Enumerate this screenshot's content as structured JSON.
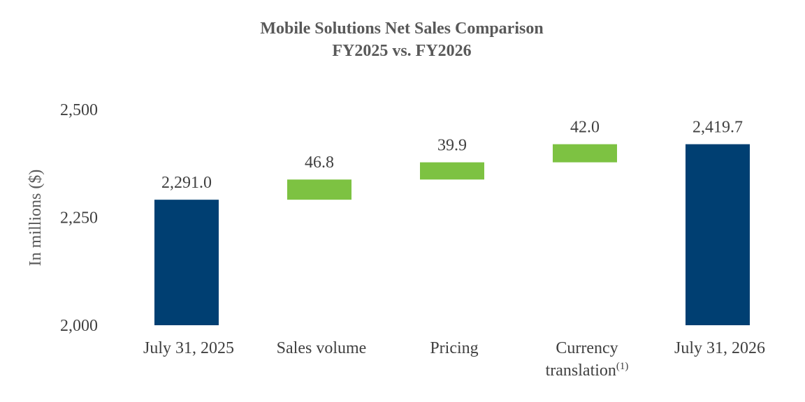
{
  "chart_data": {
    "type": "bar",
    "subtype": "waterfall",
    "title": "Mobile Solutions Net Sales Comparison",
    "subtitle": "FY2025 vs. FY2026",
    "ylabel": "In millions ($)",
    "ylim": [
      2000,
      2500
    ],
    "yticks": [
      "2,000",
      "2,250",
      "2,500"
    ],
    "ytick_values": [
      2000,
      2250,
      2500
    ],
    "categories": [
      {
        "label": "July 31, 2025",
        "label2": "",
        "sup": ""
      },
      {
        "label": "Sales volume",
        "label2": "",
        "sup": ""
      },
      {
        "label": "Pricing",
        "label2": "",
        "sup": ""
      },
      {
        "label": "Currency",
        "label2": "translation",
        "sup": "(1)"
      },
      {
        "label": "July 31, 2026",
        "label2": "",
        "sup": ""
      }
    ],
    "values": [
      2291.0,
      46.8,
      39.9,
      42.0,
      2419.7
    ],
    "data_labels": [
      "2,291.0",
      "46.8",
      "39.9",
      "42.0",
      "2,419.7"
    ],
    "kinds": [
      "total",
      "delta",
      "delta",
      "delta",
      "total"
    ],
    "grid": false,
    "legend": "none"
  },
  "colors": {
    "total": "#003F72",
    "increase": "#7DC242"
  }
}
